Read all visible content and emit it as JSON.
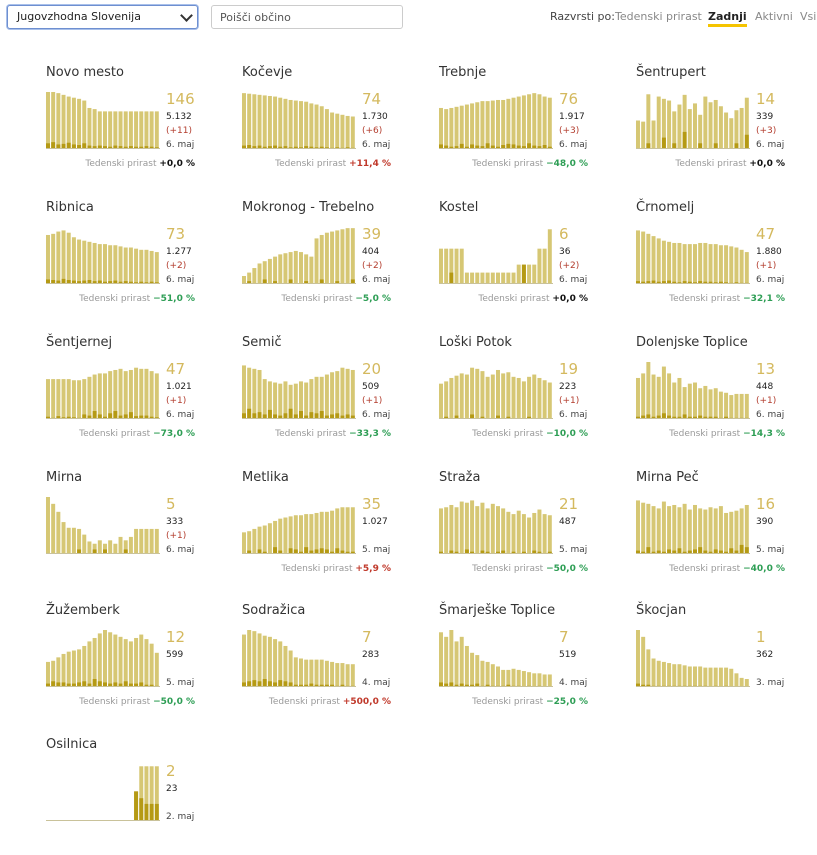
{
  "filter": {
    "region": "Jugovzhodna Slovenija",
    "search_placeholder": "Poišči občino"
  },
  "sort": {
    "label": "Razvrsti po:",
    "options": [
      "Tedenski prirast",
      "Zadnji",
      "Aktivni",
      "Vsi"
    ],
    "active": 1
  },
  "weekly_label": "Tedenski prirast",
  "colors": {
    "bar": "#d6c774",
    "bar_dark": "#b59a14",
    "accent": "#f5c400"
  },
  "municipalities": [
    {
      "name": "Novo mesto",
      "active": "146",
      "total": "5.132",
      "delta": "(+11)",
      "date": "6. maj",
      "weekly": "+0,0 %",
      "trend": "zero",
      "values": [
        100,
        100,
        98,
        95,
        92,
        90,
        88,
        85,
        72,
        70,
        66,
        66,
        66,
        66,
        66,
        66,
        66,
        66,
        66,
        66,
        66,
        66
      ],
      "newcases": [
        10,
        12,
        8,
        9,
        11,
        8,
        7,
        10,
        6,
        5,
        6,
        5,
        4,
        6,
        5,
        4,
        5,
        4,
        4,
        5,
        4,
        3
      ]
    },
    {
      "name": "Kočevje",
      "active": "74",
      "total": "1.730",
      "delta": "(+6)",
      "date": "6. maj",
      "weekly": "+11,4 %",
      "trend": "pos",
      "values": [
        98,
        97,
        96,
        95,
        94,
        93,
        92,
        90,
        88,
        86,
        85,
        84,
        83,
        80,
        78,
        75,
        70,
        64,
        62,
        60,
        58,
        57
      ],
      "newcases": [
        6,
        7,
        5,
        6,
        4,
        5,
        6,
        4,
        5,
        3,
        4,
        3,
        5,
        4,
        3,
        4,
        3,
        2,
        3,
        2,
        3,
        2
      ]
    },
    {
      "name": "Trebnje",
      "active": "76",
      "total": "1.917",
      "delta": "(+3)",
      "date": "6. maj",
      "weekly": "−48,0 %",
      "trend": "neg",
      "values": [
        72,
        70,
        72,
        74,
        76,
        78,
        80,
        82,
        84,
        84,
        85,
        86,
        86,
        88,
        90,
        92,
        94,
        96,
        98,
        96,
        92,
        90
      ],
      "newcases": [
        8,
        6,
        4,
        5,
        9,
        4,
        8,
        6,
        5,
        10,
        6,
        4,
        7,
        9,
        8,
        6,
        5,
        10,
        6,
        5,
        7,
        4
      ]
    },
    {
      "name": "Šentrupert",
      "active": "14",
      "total": "339",
      "delta": "(+3)",
      "date": "6. maj",
      "weekly": "+0,0 %",
      "trend": "zero",
      "values": [
        50,
        48,
        96,
        50,
        92,
        88,
        85,
        66,
        78,
        95,
        70,
        80,
        60,
        92,
        82,
        86,
        75,
        64,
        54,
        68,
        72,
        90
      ],
      "newcases": [
        0,
        0,
        10,
        0,
        0,
        20,
        0,
        10,
        0,
        30,
        0,
        0,
        10,
        0,
        0,
        10,
        0,
        0,
        0,
        10,
        0,
        25
      ]
    },
    {
      "name": "Ribnica",
      "active": "73",
      "total": "1.277",
      "delta": "(+2)",
      "date": "6. maj",
      "weekly": "−51,0 %",
      "trend": "neg",
      "values": [
        86,
        88,
        92,
        94,
        90,
        82,
        78,
        76,
        74,
        72,
        70,
        70,
        68,
        68,
        66,
        64,
        64,
        62,
        60,
        60,
        58,
        56
      ],
      "newcases": [
        8,
        7,
        6,
        9,
        7,
        6,
        5,
        6,
        7,
        5,
        6,
        4,
        5,
        6,
        4,
        5,
        4,
        3,
        4,
        3,
        4,
        3
      ]
    },
    {
      "name": "Mokronog - Trebelno",
      "active": "39",
      "total": "404",
      "delta": "(+2)",
      "date": "6. maj",
      "weekly": "−5,0 %",
      "trend": "neg",
      "values": [
        14,
        20,
        28,
        36,
        40,
        44,
        48,
        52,
        54,
        56,
        58,
        56,
        52,
        48,
        80,
        86,
        90,
        92,
        94,
        96,
        98,
        98
      ],
      "newcases": [
        0,
        5,
        0,
        0,
        8,
        0,
        5,
        0,
        0,
        8,
        0,
        0,
        5,
        0,
        0,
        8,
        0,
        0,
        5,
        0,
        0,
        8
      ]
    },
    {
      "name": "Kostel",
      "active": "6",
      "total": "36",
      "delta": "(+2)",
      "date": "6. maj",
      "weekly": "+0,0 %",
      "trend": "zero",
      "values": [
        62,
        62,
        62,
        62,
        62,
        20,
        20,
        20,
        20,
        20,
        20,
        20,
        20,
        20,
        20,
        34,
        34,
        34,
        34,
        62,
        62,
        96
      ],
      "newcases": [
        0,
        0,
        20,
        0,
        0,
        0,
        0,
        0,
        0,
        0,
        0,
        0,
        0,
        0,
        0,
        0,
        34,
        0,
        0,
        0,
        0,
        0
      ]
    },
    {
      "name": "Črnomelj",
      "active": "47",
      "total": "1.880",
      "delta": "(+1)",
      "date": "6. maj",
      "weekly": "−32,1 %",
      "trend": "neg",
      "values": [
        94,
        92,
        88,
        84,
        80,
        76,
        74,
        72,
        72,
        70,
        70,
        70,
        72,
        72,
        70,
        70,
        68,
        68,
        66,
        64,
        60,
        56
      ],
      "newcases": [
        5,
        4,
        5,
        6,
        4,
        5,
        6,
        4,
        3,
        5,
        4,
        3,
        5,
        4,
        4,
        3,
        4,
        3,
        2,
        3,
        2,
        2
      ]
    },
    {
      "name": "Šentjernej",
      "active": "47",
      "total": "1.021",
      "delta": "(+1)",
      "date": "6. maj",
      "weekly": "−73,0 %",
      "trend": "neg",
      "values": [
        70,
        70,
        70,
        70,
        70,
        68,
        68,
        70,
        74,
        78,
        80,
        80,
        84,
        86,
        88,
        84,
        86,
        90,
        88,
        88,
        84,
        80
      ],
      "newcases": [
        4,
        2,
        5,
        3,
        4,
        3,
        2,
        8,
        6,
        14,
        8,
        4,
        10,
        14,
        6,
        8,
        12,
        5,
        6,
        6,
        4,
        3
      ]
    },
    {
      "name": "Semič",
      "active": "20",
      "total": "509",
      "delta": "(+1)",
      "date": "6. maj",
      "weekly": "−33,3 %",
      "trend": "neg",
      "values": [
        94,
        90,
        88,
        86,
        70,
        66,
        64,
        62,
        66,
        60,
        62,
        66,
        64,
        70,
        74,
        74,
        78,
        82,
        84,
        90,
        88,
        86
      ],
      "newcases": [
        10,
        18,
        10,
        12,
        8,
        16,
        8,
        6,
        10,
        18,
        8,
        14,
        6,
        12,
        10,
        14,
        6,
        8,
        10,
        6,
        8,
        6
      ]
    },
    {
      "name": "Loški Potok",
      "active": "19",
      "total": "223",
      "delta": "(+1)",
      "date": "6. maj",
      "weekly": "−10,0 %",
      "trend": "neg",
      "values": [
        62,
        66,
        72,
        76,
        80,
        78,
        90,
        88,
        84,
        74,
        78,
        86,
        80,
        82,
        74,
        72,
        66,
        74,
        78,
        72,
        68,
        64
      ],
      "newcases": [
        0,
        4,
        0,
        6,
        0,
        0,
        8,
        0,
        4,
        0,
        0,
        6,
        0,
        4,
        0,
        0,
        0,
        4,
        0,
        0,
        0,
        0
      ]
    },
    {
      "name": "Dolenjske Toplice",
      "active": "13",
      "total": "448",
      "delta": "(+1)",
      "date": "6. maj",
      "weekly": "−14,3 %",
      "trend": "neg",
      "values": [
        72,
        80,
        100,
        78,
        74,
        92,
        80,
        64,
        72,
        56,
        62,
        64,
        54,
        58,
        52,
        54,
        48,
        46,
        42,
        44,
        44,
        44
      ],
      "newcases": [
        4,
        6,
        8,
        4,
        6,
        10,
        6,
        4,
        4,
        8,
        4,
        4,
        6,
        4,
        4,
        4,
        2,
        4,
        2,
        2,
        2,
        2
      ]
    },
    {
      "name": "Mirna",
      "active": "5",
      "total": "333",
      "delta": "(+1)",
      "date": "6. maj",
      "weekly": "",
      "trend": "neg",
      "values": [
        100,
        88,
        74,
        56,
        46,
        46,
        44,
        34,
        22,
        18,
        24,
        18,
        24,
        18,
        30,
        24,
        30,
        44,
        44,
        44,
        44,
        44
      ],
      "newcases": [
        0,
        0,
        0,
        0,
        0,
        0,
        8,
        0,
        0,
        8,
        0,
        8,
        0,
        0,
        0,
        8,
        0,
        0,
        0,
        0,
        0,
        0
      ]
    },
    {
      "name": "Metlika",
      "active": "35",
      "total": "1.027",
      "delta": "",
      "date": "5. maj",
      "weekly": "+5,9 %",
      "trend": "pos",
      "values": [
        38,
        40,
        44,
        48,
        50,
        54,
        58,
        62,
        64,
        66,
        68,
        68,
        70,
        70,
        72,
        74,
        74,
        76,
        80,
        82,
        82,
        82
      ],
      "newcases": [
        0,
        6,
        0,
        8,
        4,
        0,
        12,
        6,
        0,
        10,
        8,
        4,
        12,
        6,
        8,
        10,
        8,
        4,
        10,
        6,
        4,
        4
      ]
    },
    {
      "name": "Straža",
      "active": "21",
      "total": "487",
      "delta": "",
      "date": "5. maj",
      "weekly": "−50,0 %",
      "trend": "neg",
      "values": [
        80,
        82,
        86,
        82,
        92,
        90,
        94,
        84,
        90,
        80,
        88,
        84,
        80,
        74,
        70,
        76,
        70,
        64,
        72,
        78,
        70,
        68
      ],
      "newcases": [
        4,
        0,
        6,
        4,
        0,
        8,
        4,
        0,
        6,
        4,
        0,
        4,
        6,
        0,
        4,
        0,
        4,
        0,
        6,
        4,
        0,
        4
      ]
    },
    {
      "name": "Mirna Peč",
      "active": "16",
      "total": "390",
      "delta": "",
      "date": "5. maj",
      "weekly": "−40,0 %",
      "trend": "neg",
      "values": [
        94,
        90,
        88,
        84,
        80,
        92,
        84,
        86,
        82,
        88,
        78,
        86,
        80,
        78,
        82,
        80,
        84,
        72,
        74,
        76,
        80,
        86
      ],
      "newcases": [
        6,
        4,
        12,
        4,
        6,
        4,
        8,
        6,
        10,
        4,
        6,
        8,
        12,
        6,
        4,
        8,
        6,
        4,
        10,
        6,
        16,
        12
      ]
    },
    {
      "name": "Žužemberk",
      "active": "12",
      "total": "599",
      "delta": "",
      "date": "5. maj",
      "weekly": "−50,0 %",
      "trend": "neg",
      "values": [
        44,
        46,
        52,
        58,
        62,
        64,
        66,
        72,
        80,
        86,
        94,
        100,
        96,
        92,
        88,
        84,
        80,
        86,
        92,
        84,
        76,
        60
      ],
      "newcases": [
        6,
        10,
        8,
        8,
        6,
        6,
        8,
        10,
        6,
        14,
        10,
        8,
        6,
        8,
        6,
        10,
        6,
        6,
        8,
        4,
        4,
        2
      ]
    },
    {
      "name": "Sodražica",
      "active": "7",
      "total": "283",
      "delta": "",
      "date": "4. maj",
      "weekly": "+500,0 %",
      "trend": "pos",
      "values": [
        92,
        100,
        98,
        94,
        90,
        88,
        84,
        80,
        72,
        64,
        52,
        50,
        48,
        48,
        48,
        48,
        46,
        44,
        42,
        42,
        40,
        40
      ],
      "newcases": [
        8,
        10,
        12,
        10,
        14,
        10,
        8,
        12,
        10,
        8,
        4,
        4,
        4,
        6,
        4,
        4,
        4,
        4,
        2,
        4,
        2,
        2
      ]
    },
    {
      "name": "Šmarješke Toplice",
      "active": "7",
      "total": "519",
      "delta": "",
      "date": "4. maj",
      "weekly": "−25,0 %",
      "trend": "neg",
      "values": [
        96,
        88,
        100,
        80,
        88,
        72,
        60,
        56,
        46,
        44,
        40,
        36,
        30,
        30,
        32,
        30,
        28,
        26,
        24,
        24,
        22,
        22
      ],
      "newcases": [
        8,
        6,
        8,
        4,
        6,
        4,
        4,
        6,
        2,
        4,
        2,
        2,
        2,
        4,
        2,
        2,
        0,
        2,
        0,
        2,
        0,
        0
      ]
    },
    {
      "name": "Škocjan",
      "active": "1",
      "total": "362",
      "delta": "",
      "date": "3. maj",
      "weekly": "",
      "trend": "neg",
      "values": [
        100,
        88,
        66,
        50,
        46,
        44,
        42,
        40,
        40,
        38,
        36,
        36,
        36,
        34,
        34,
        34,
        34,
        34,
        32,
        24,
        16,
        14
      ],
      "newcases": [
        6,
        4,
        4,
        2,
        2,
        2,
        2,
        2,
        2,
        2,
        2,
        2,
        2,
        2,
        0,
        2,
        0,
        2,
        0,
        0,
        0,
        0
      ]
    },
    {
      "name": "Osilnica",
      "active": "2",
      "total": "23",
      "delta": "",
      "date": "2. maj",
      "weekly": "",
      "trend": "neg",
      "values": [
        0,
        0,
        0,
        0,
        0,
        0,
        0,
        0,
        0,
        0,
        0,
        0,
        0,
        0,
        0,
        0,
        0,
        52,
        96,
        96,
        96,
        96
      ],
      "newcases": [
        0,
        0,
        0,
        0,
        0,
        0,
        0,
        0,
        0,
        0,
        0,
        0,
        0,
        0,
        0,
        0,
        0,
        52,
        40,
        30,
        30,
        30
      ]
    }
  ]
}
